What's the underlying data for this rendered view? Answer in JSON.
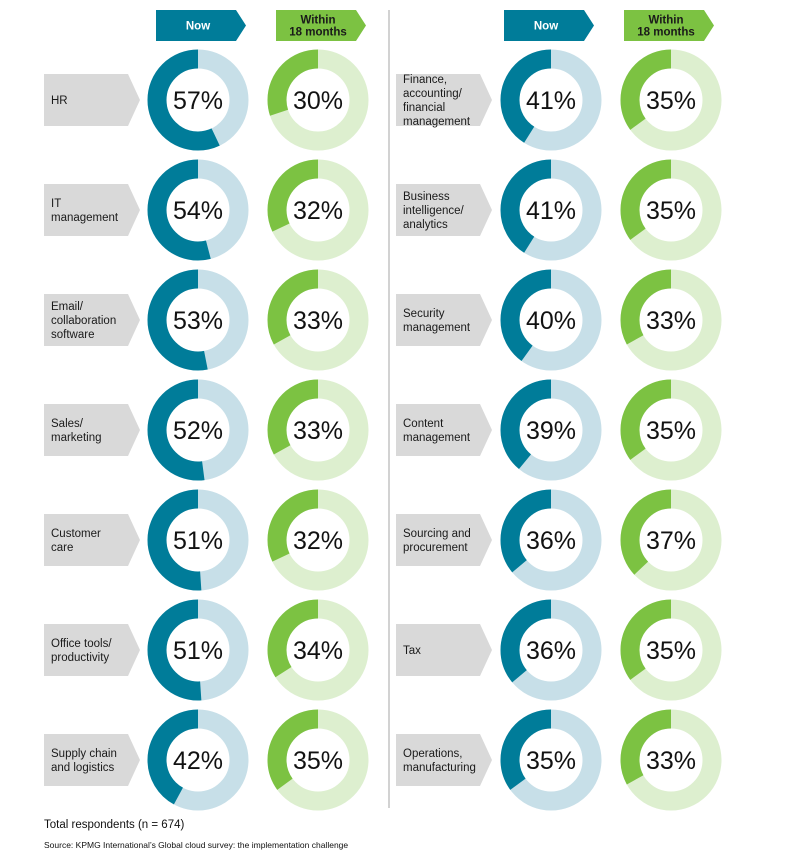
{
  "chart_data": {
    "type": "donut-grid",
    "colors": {
      "now": "#007c99",
      "now_track": "#c7dfe8",
      "within": "#7cc242",
      "within_track": "#ddefcf",
      "label_bg": "#d9d9d9",
      "now_header": "#007c99",
      "within_header": "#7cc242"
    },
    "headers": {
      "now": "Now",
      "within": [
        "Within",
        "18 months"
      ]
    },
    "panels": [
      {
        "categories": [
          {
            "label": [
              "HR"
            ],
            "now": 57,
            "within": 30
          },
          {
            "label": [
              "IT",
              "management"
            ],
            "now": 54,
            "within": 32
          },
          {
            "label": [
              "Email/",
              "collaboration",
              "software"
            ],
            "now": 53,
            "within": 33
          },
          {
            "label": [
              "Sales/",
              "marketing"
            ],
            "now": 52,
            "within": 33
          },
          {
            "label": [
              "Customer",
              "care"
            ],
            "now": 51,
            "within": 32
          },
          {
            "label": [
              "Office tools/",
              "productivity"
            ],
            "now": 51,
            "within": 34
          },
          {
            "label": [
              "Supply chain",
              "and logistics"
            ],
            "now": 42,
            "within": 35
          }
        ]
      },
      {
        "categories": [
          {
            "label": [
              "Finance,",
              "accounting/",
              "financial",
              "management"
            ],
            "now": 41,
            "within": 35
          },
          {
            "label": [
              "Business",
              "intelligence/",
              "analytics"
            ],
            "now": 41,
            "within": 35
          },
          {
            "label": [
              "Security",
              "management"
            ],
            "now": 40,
            "within": 33
          },
          {
            "label": [
              "Content",
              "management"
            ],
            "now": 39,
            "within": 35
          },
          {
            "label": [
              "Sourcing and",
              "procurement"
            ],
            "now": 36,
            "within": 37
          },
          {
            "label": [
              "Tax"
            ],
            "now": 36,
            "within": 35
          },
          {
            "label": [
              "Operations,",
              "manufacturing"
            ],
            "now": 35,
            "within": 33
          }
        ]
      }
    ],
    "value_suffix": "%"
  },
  "footer": {
    "total": "Total respondents (n = 674)",
    "source": "Source: KPMG International’s Global cloud survey: the implementation challenge"
  }
}
